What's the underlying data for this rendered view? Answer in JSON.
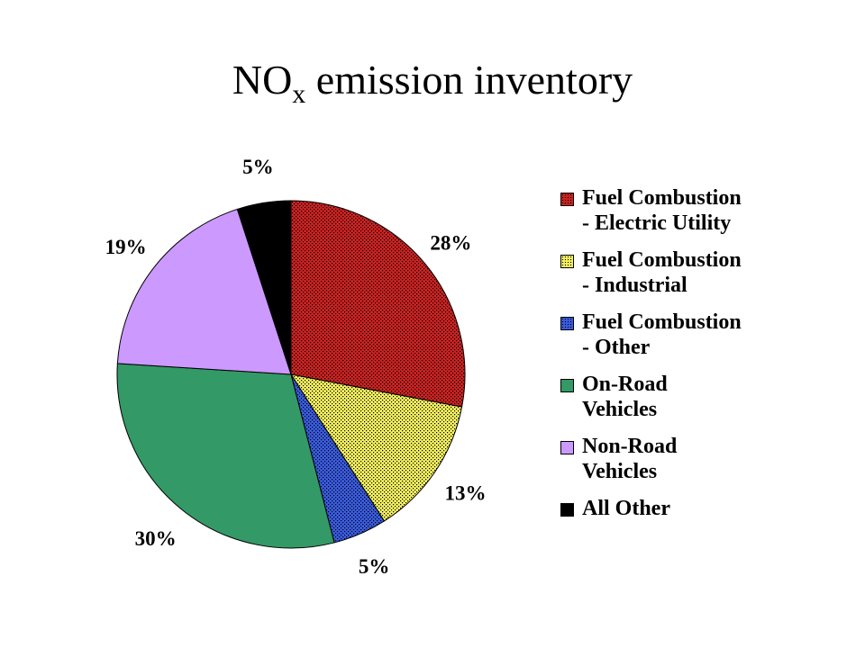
{
  "title": {
    "text": "NO",
    "subscript": "x",
    "suffix": " emission inventory"
  },
  "chart_data": {
    "type": "pie",
    "title": "NOx emission inventory",
    "legend_position": "right",
    "slices": [
      {
        "label": "Fuel Combustion - Electric Utility",
        "legend_lines": [
          "Fuel Combustion",
          "- Electric Utility"
        ],
        "value": 28,
        "display": "28%",
        "color": "#cc2222",
        "pattern": "dots"
      },
      {
        "label": "Fuel Combustion - Industrial",
        "legend_lines": [
          "Fuel Combustion",
          "- Industrial"
        ],
        "value": 13,
        "display": "13%",
        "color": "#f4f060",
        "pattern": "dots"
      },
      {
        "label": "Fuel Combustion - Other",
        "legend_lines": [
          "Fuel Combustion",
          "- Other"
        ],
        "value": 5,
        "display": "5%",
        "color": "#3a5ce0",
        "pattern": "dots"
      },
      {
        "label": "On-Road Vehicles",
        "legend_lines": [
          "On-Road",
          "Vehicles"
        ],
        "value": 30,
        "display": "30%",
        "color": "#339966",
        "pattern": "solid"
      },
      {
        "label": "Non-Road Vehicles",
        "legend_lines": [
          "Non-Road",
          "Vehicles"
        ],
        "value": 19,
        "display": "19%",
        "color": "#cc99ff",
        "pattern": "solid"
      },
      {
        "label": "All Other",
        "legend_lines": [
          "All Other"
        ],
        "value": 5,
        "display": "5%",
        "color": "#000000",
        "pattern": "solid"
      }
    ]
  }
}
